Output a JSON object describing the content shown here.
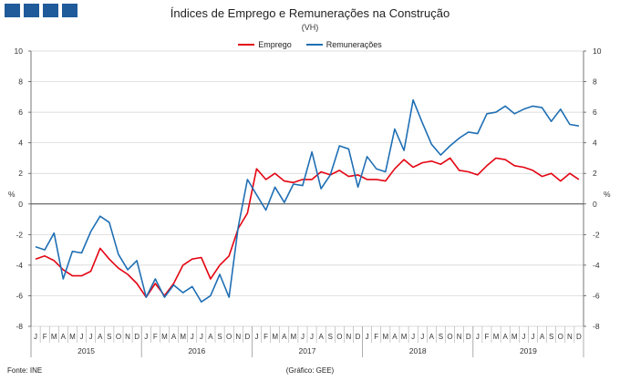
{
  "header": {
    "title": "Índices de Emprego  e Remunerações na Construção",
    "subtitle": "(VH)"
  },
  "footer": {
    "source": "Fonte: INE",
    "credit": "(Gráfico: GEE)"
  },
  "colors": {
    "logo": "#1f5b9a",
    "emprego": "#e30613",
    "remuneracoes": "#1f6fb4",
    "grid": "#d0d0d0",
    "axis": "#555555"
  },
  "chart_data": {
    "type": "line",
    "title": "Índices de Emprego  e Remunerações na Construção",
    "subtitle": "(VH)",
    "ylabel_left": "%",
    "ylabel_right": "%",
    "ylim": [
      -8,
      10
    ],
    "yticks": [
      -8,
      -6,
      -4,
      -2,
      0,
      2,
      4,
      6,
      8,
      10
    ],
    "grid": "horizontal",
    "legend_position": "top-center",
    "month_labels": [
      "J",
      "F",
      "M",
      "A",
      "M",
      "J",
      "J",
      "A",
      "S",
      "O",
      "N",
      "D",
      "J",
      "F",
      "M",
      "A",
      "M",
      "J",
      "J",
      "A",
      "S",
      "O",
      "N",
      "D",
      "J",
      "F",
      "M",
      "A",
      "M",
      "J",
      "J",
      "A",
      "S",
      "O",
      "N",
      "D",
      "J",
      "F",
      "M",
      "A",
      "M",
      "J",
      "J",
      "A",
      "S",
      "O",
      "N",
      "D",
      "J",
      "F",
      "M",
      "A",
      "M",
      "J",
      "J",
      "A",
      "S",
      "O",
      "N",
      "D"
    ],
    "year_labels": [
      "2015",
      "2016",
      "2017",
      "2018",
      "2019"
    ],
    "series": [
      {
        "name": "Emprego",
        "color": "#e30613",
        "values": [
          -3.6,
          -3.4,
          -3.7,
          -4.3,
          -4.7,
          -4.7,
          -4.4,
          -2.9,
          -3.6,
          -4.2,
          -4.6,
          -5.2,
          -6.1,
          -5.2,
          -6.0,
          -5.2,
          -4.0,
          -3.6,
          -3.5,
          -4.9,
          -4.0,
          -3.4,
          -1.6,
          -0.6,
          2.3,
          1.6,
          2.0,
          1.5,
          1.4,
          1.6,
          1.6,
          2.1,
          1.9,
          2.2,
          1.8,
          1.9,
          1.6,
          1.6,
          1.5,
          2.3,
          2.9,
          2.4,
          2.7,
          2.8,
          2.6,
          3.0,
          2.2,
          2.1,
          1.9,
          2.5,
          3.0,
          2.9,
          2.5,
          2.4,
          2.2,
          1.8,
          2.0,
          1.5,
          2.0,
          1.6
        ]
      },
      {
        "name": "Remunerações",
        "color": "#1f6fb4",
        "values": [
          -2.8,
          -3.0,
          -1.9,
          -4.9,
          -3.1,
          -3.2,
          -1.8,
          -0.8,
          -1.2,
          -3.3,
          -4.3,
          -3.7,
          -6.1,
          -4.9,
          -6.1,
          -5.3,
          -5.8,
          -5.4,
          -6.4,
          -6.0,
          -4.6,
          -6.1,
          -1.5,
          1.6,
          0.6,
          -0.4,
          1.1,
          0.1,
          1.3,
          1.2,
          3.4,
          1.0,
          1.9,
          3.8,
          3.6,
          1.1,
          3.1,
          2.3,
          2.1,
          4.9,
          3.5,
          6.8,
          5.3,
          3.9,
          3.2,
          3.8,
          4.3,
          4.7,
          4.6,
          5.9,
          6.0,
          6.4,
          5.9,
          6.2,
          6.4,
          6.3,
          5.4,
          6.2,
          5.2,
          5.1
        ]
      }
    ]
  }
}
